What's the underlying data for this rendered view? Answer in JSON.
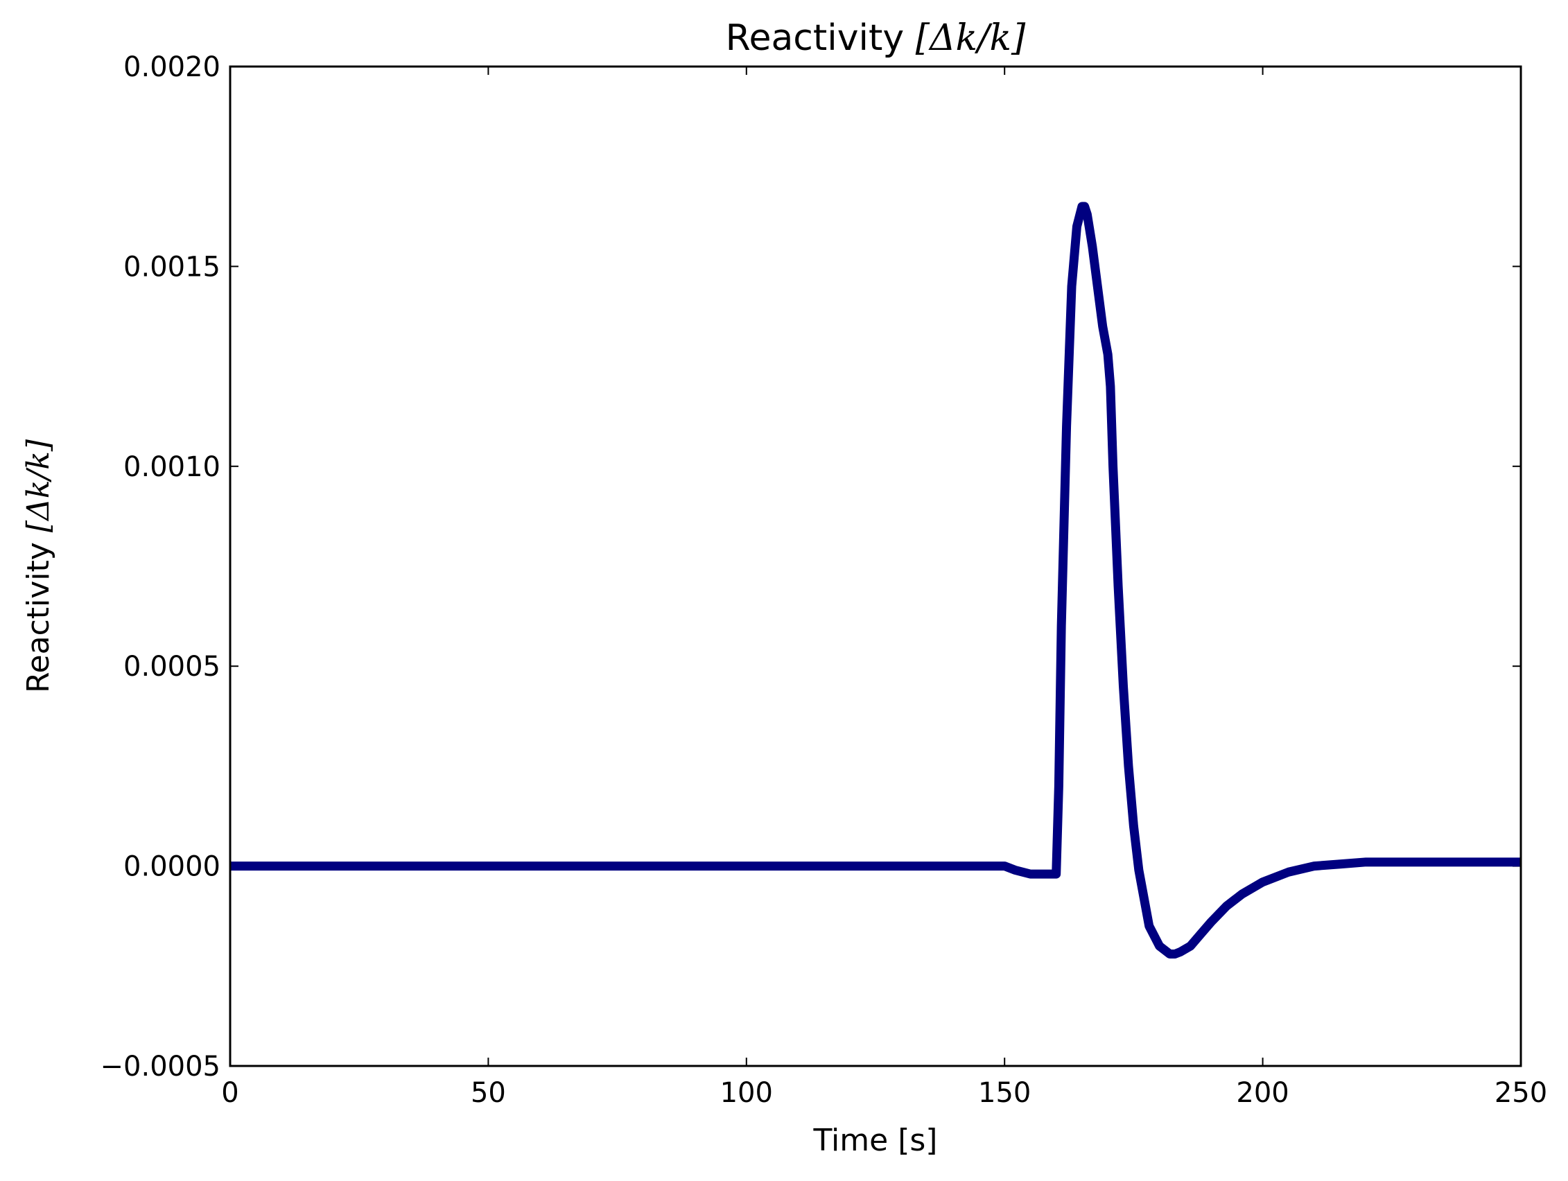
{
  "chart_data": {
    "type": "line",
    "title": "Reactivity [Δk/k]",
    "title_prefix": "Reactivity ",
    "math_label": "[Δk/k]",
    "xlabel": "Time [s]",
    "ylabel": "Reactivity [Δk/k]",
    "ylabel_prefix": "Reactivity ",
    "xlim": [
      0,
      250
    ],
    "ylim": [
      -0.0005,
      0.002
    ],
    "xticks": [
      "0",
      "50",
      "100",
      "150",
      "200",
      "250"
    ],
    "yticks": [
      "−0.0005",
      "0.0000",
      "0.0005",
      "0.0010",
      "0.0015",
      "0.0020"
    ],
    "grid": false,
    "series": [
      {
        "color": "#000080",
        "x": [
          0,
          50,
          100,
          150,
          152,
          155,
          158,
          160,
          160.5,
          161,
          162,
          163,
          164,
          165,
          165.5,
          166,
          167,
          168,
          169,
          170,
          170.5,
          171,
          172,
          173,
          174,
          175,
          176,
          178,
          180,
          182,
          183,
          184,
          186,
          188,
          190,
          193,
          196,
          200,
          205,
          210,
          215,
          220,
          230,
          240,
          250
        ],
        "y": [
          0.0,
          0.0,
          0.0,
          0.0,
          -1e-05,
          -2e-05,
          -2e-05,
          -2e-05,
          0.0002,
          0.0006,
          0.0011,
          0.00145,
          0.0016,
          0.00165,
          0.00165,
          0.00163,
          0.00155,
          0.00145,
          0.00135,
          0.00128,
          0.0012,
          0.001,
          0.0007,
          0.00045,
          0.00025,
          0.0001,
          -1e-05,
          -0.00015,
          -0.0002,
          -0.00022,
          -0.00022,
          -0.000215,
          -0.0002,
          -0.00017,
          -0.00014,
          -0.0001,
          -7e-05,
          -4e-05,
          -1.5e-05,
          0.0,
          5e-06,
          1e-05,
          1e-05,
          1e-05,
          1e-05
        ]
      }
    ]
  }
}
